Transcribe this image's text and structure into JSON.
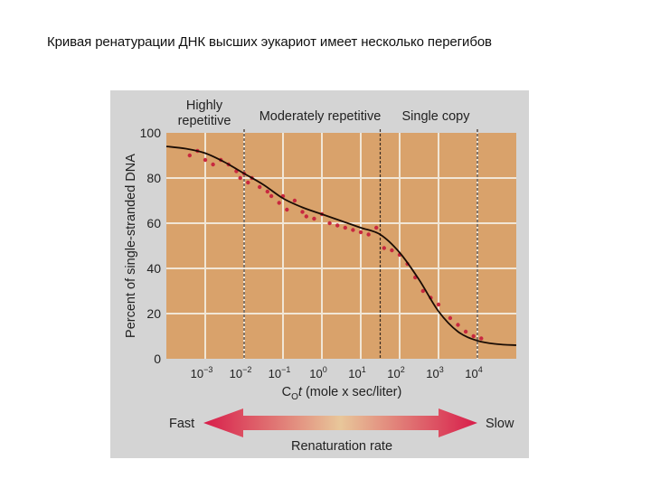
{
  "slide": {
    "title": "Кривая ренатурации ДНК высших эукариот имеет несколько перегибов"
  },
  "chart_data": {
    "type": "line",
    "title": "",
    "xlabel": "C0t (mole x sec/liter)",
    "xlabel_main": "C",
    "xlabel_sub": "O",
    "xlabel_rest": "t (mole x sec/liter)",
    "ylabel": "Percent of single-stranded DNA",
    "xscale": "log",
    "x_tick_labels": [
      "10^-3",
      "10^-2",
      "10^-1",
      "10^0",
      "10^1",
      "10^2",
      "10^3",
      "10^4"
    ],
    "x_ticks": [
      {
        "base": "10",
        "exp": "−3"
      },
      {
        "base": "10",
        "exp": "−2"
      },
      {
        "base": "10",
        "exp": "−1"
      },
      {
        "base": "10",
        "exp": "0"
      },
      {
        "base": "10",
        "exp": "1"
      },
      {
        "base": "10",
        "exp": "2"
      },
      {
        "base": "10",
        "exp": "3"
      },
      {
        "base": "10",
        "exp": "4"
      }
    ],
    "y_ticks": [
      "0",
      "20",
      "40",
      "60",
      "80",
      "100"
    ],
    "xlim_log10": [
      -4,
      5
    ],
    "ylim": [
      0,
      100
    ],
    "grid": true,
    "region_labels": [
      {
        "text_line1": "Highly",
        "text_line2": "repetitive",
        "range_log10": [
          -4,
          -2
        ]
      },
      {
        "text_line1": "Moderately repetitive",
        "text_line2": "",
        "range_log10": [
          -2,
          1.5
        ]
      },
      {
        "text_line1": "Single copy",
        "text_line2": "",
        "range_log10": [
          1.5,
          4
        ]
      }
    ],
    "region_boundaries_log10": [
      -2,
      1.5,
      4
    ],
    "series": [
      {
        "name": "fitted curve",
        "x_log10": [
          -4,
          -3.5,
          -3,
          -2.5,
          -2,
          -1.5,
          -1,
          -0.5,
          0,
          0.5,
          1,
          1.5,
          2,
          2.5,
          3,
          3.5,
          4,
          4.5,
          5
        ],
        "values": [
          94,
          93,
          91,
          87,
          82,
          77,
          71,
          67,
          64,
          61,
          58,
          55,
          47,
          35,
          21,
          12,
          8,
          6.5,
          6
        ]
      },
      {
        "name": "measured points",
        "type": "scatter",
        "x_log10": [
          -3.4,
          -3.2,
          -3.0,
          -2.8,
          -2.6,
          -2.4,
          -2.2,
          -2.1,
          -2.0,
          -1.9,
          -1.8,
          -1.6,
          -1.4,
          -1.3,
          -1.1,
          -1.0,
          -0.9,
          -0.7,
          -0.5,
          -0.4,
          -0.2,
          0,
          0.2,
          0.4,
          0.6,
          0.8,
          1.0,
          1.2,
          1.4,
          1.6,
          1.8,
          2.0,
          2.2,
          2.4,
          2.6,
          2.8,
          3.0,
          3.3,
          3.5,
          3.7,
          3.9,
          4.1
        ],
        "values": [
          90,
          92,
          88,
          86,
          88,
          86,
          83,
          80,
          82,
          78,
          80,
          76,
          74,
          72,
          69,
          72,
          66,
          70,
          65,
          63,
          62,
          64,
          60,
          59,
          58,
          57,
          56,
          55,
          58,
          49,
          48,
          46,
          42,
          36,
          30,
          27,
          24,
          18,
          15,
          12,
          10,
          9
        ]
      }
    ]
  },
  "rate_scale": {
    "left_label": "Fast",
    "right_label": "Slow",
    "caption": "Renaturation rate"
  },
  "colors": {
    "panel_bg": "#d4d4d4",
    "plot_bg": "#d9a26b",
    "grid": "#f1e6d6",
    "curve": "#1a0c04",
    "points": "#c8283f",
    "arrow_end": "#d81d4a",
    "arrow_mid": "#e8c79a"
  }
}
